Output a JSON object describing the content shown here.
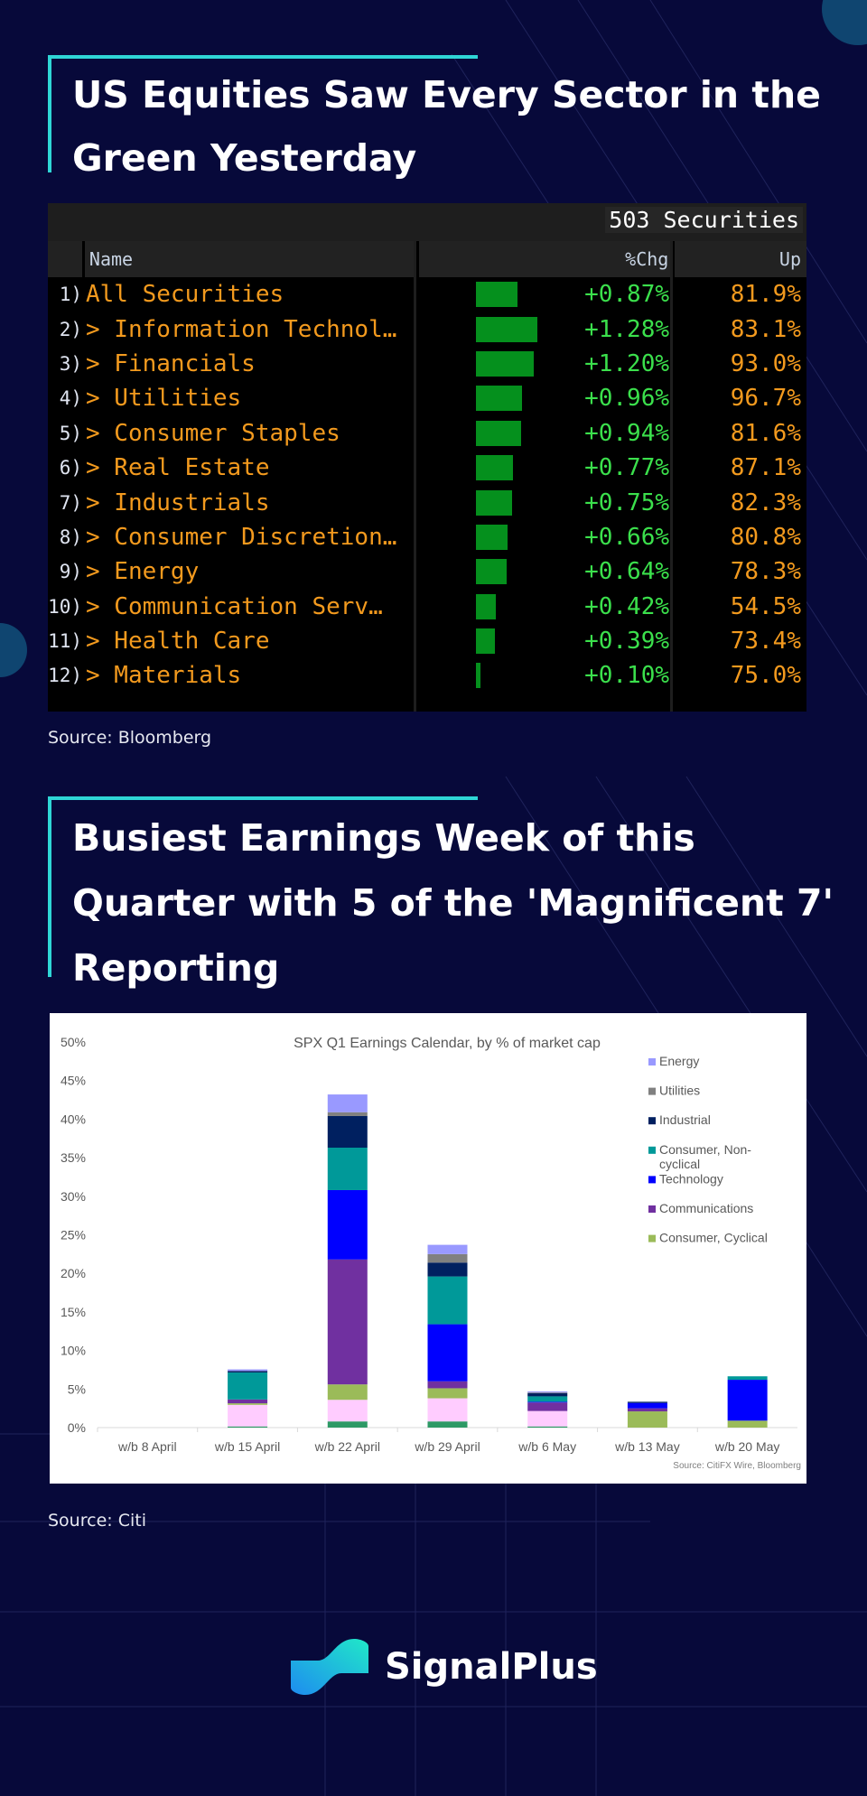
{
  "section1": {
    "title_lines": [
      "US Equities Saw Every Sector in the",
      "Green Yesterday"
    ],
    "source": "Source: Bloomberg",
    "table": {
      "securities_count": "503 Securities",
      "columns": [
        "Name",
        "%Chg",
        "Up"
      ],
      "bar_color": "#05901d",
      "rows": [
        {
          "num": "1)",
          "name": "All Securities",
          "chg": "+0.87%",
          "chg_value": 0.87,
          "up": "81.9%"
        },
        {
          "num": "2)",
          "name": "> Information Technol…",
          "chg": "+1.28%",
          "chg_value": 1.28,
          "up": "83.1%"
        },
        {
          "num": "3)",
          "name": "> Financials",
          "chg": "+1.20%",
          "chg_value": 1.2,
          "up": "93.0%"
        },
        {
          "num": "4)",
          "name": "> Utilities",
          "chg": "+0.96%",
          "chg_value": 0.96,
          "up": "96.7%"
        },
        {
          "num": "5)",
          "name": "> Consumer Staples",
          "chg": "+0.94%",
          "chg_value": 0.94,
          "up": "81.6%"
        },
        {
          "num": "6)",
          "name": "> Real Estate",
          "chg": "+0.77%",
          "chg_value": 0.77,
          "up": "87.1%"
        },
        {
          "num": "7)",
          "name": "> Industrials",
          "chg": "+0.75%",
          "chg_value": 0.75,
          "up": "82.3%"
        },
        {
          "num": "8)",
          "name": "> Consumer Discretion…",
          "chg": "+0.66%",
          "chg_value": 0.66,
          "up": "80.8%"
        },
        {
          "num": "9)",
          "name": "> Energy",
          "chg": "+0.64%",
          "chg_value": 0.64,
          "up": "78.3%"
        },
        {
          "num": "10)",
          "name": "> Communication Serv…",
          "chg": "+0.42%",
          "chg_value": 0.42,
          "up": "54.5%"
        },
        {
          "num": "11)",
          "name": "> Health Care",
          "chg": "+0.39%",
          "chg_value": 0.39,
          "up": "73.4%"
        },
        {
          "num": "12)",
          "name": "> Materials",
          "chg": "+0.10%",
          "chg_value": 0.1,
          "up": "75.0%"
        }
      ]
    }
  },
  "section2": {
    "title_lines": [
      "Busiest Earnings Week of this",
      "Quarter with 5 of the 'Magnificent 7'",
      "Reporting"
    ],
    "source": "Source: Citi"
  },
  "chart_data": {
    "type": "bar",
    "stacked": true,
    "title": "SPX Q1 Earnings Calendar, by % of market cap",
    "source_note": "Source: CitiFX Wire, Bloomberg",
    "categories": [
      "w/b 8 April",
      "w/b 15 April",
      "w/b 22 April",
      "w/b 29 April",
      "w/b 6 May",
      "w/b 13 May",
      "w/b 20 May"
    ],
    "ylim": [
      0,
      50
    ],
    "yticks": [
      "0%",
      "5%",
      "10%",
      "15%",
      "20%",
      "25%",
      "30%",
      "35%",
      "40%",
      "45%",
      "50%"
    ],
    "grid": false,
    "legend_placement": "right",
    "series": [
      {
        "color": "#2e9966",
        "values": [
          0,
          0.15,
          0.8,
          0.8,
          0.15,
          0,
          0
        ]
      },
      {
        "color": "#ffccff",
        "values": [
          0,
          2.8,
          2.8,
          3.0,
          2.0,
          0,
          0
        ]
      },
      {
        "name": "Consumer, Cyclical",
        "color": "#9bbb59",
        "values": [
          0,
          0.2,
          2.0,
          1.3,
          0,
          2.1,
          0.9
        ]
      },
      {
        "name": "Communications",
        "color": "#7030a0",
        "values": [
          0,
          0.5,
          16.2,
          0.9,
          1.1,
          0.4,
          0
        ]
      },
      {
        "name": "Technology",
        "color": "#0000ff",
        "values": [
          0,
          0,
          9.0,
          7.4,
          0.1,
          0.7,
          5.3
        ]
      },
      {
        "name": "Consumer, Non-cyclical",
        "color": "#009999",
        "values": [
          0,
          3.5,
          5.5,
          6.2,
          0.7,
          0,
          0.45
        ]
      },
      {
        "name": "Industrial",
        "color": "#002060",
        "values": [
          0,
          0.2,
          4.1,
          1.8,
          0.4,
          0.15,
          0
        ]
      },
      {
        "name": "Utilities",
        "color": "#808080",
        "values": [
          0,
          0,
          0.5,
          1.1,
          0.1,
          0,
          0
        ]
      },
      {
        "name": "Energy",
        "color": "#9999ff",
        "values": [
          0,
          0.2,
          2.3,
          1.2,
          0.15,
          0,
          0
        ]
      }
    ]
  },
  "footer": {
    "brand": "SignalPlus",
    "icon": "signalplus-logo-icon"
  },
  "colors": {
    "background": "#07093a",
    "accent": "#2fd6d6"
  }
}
